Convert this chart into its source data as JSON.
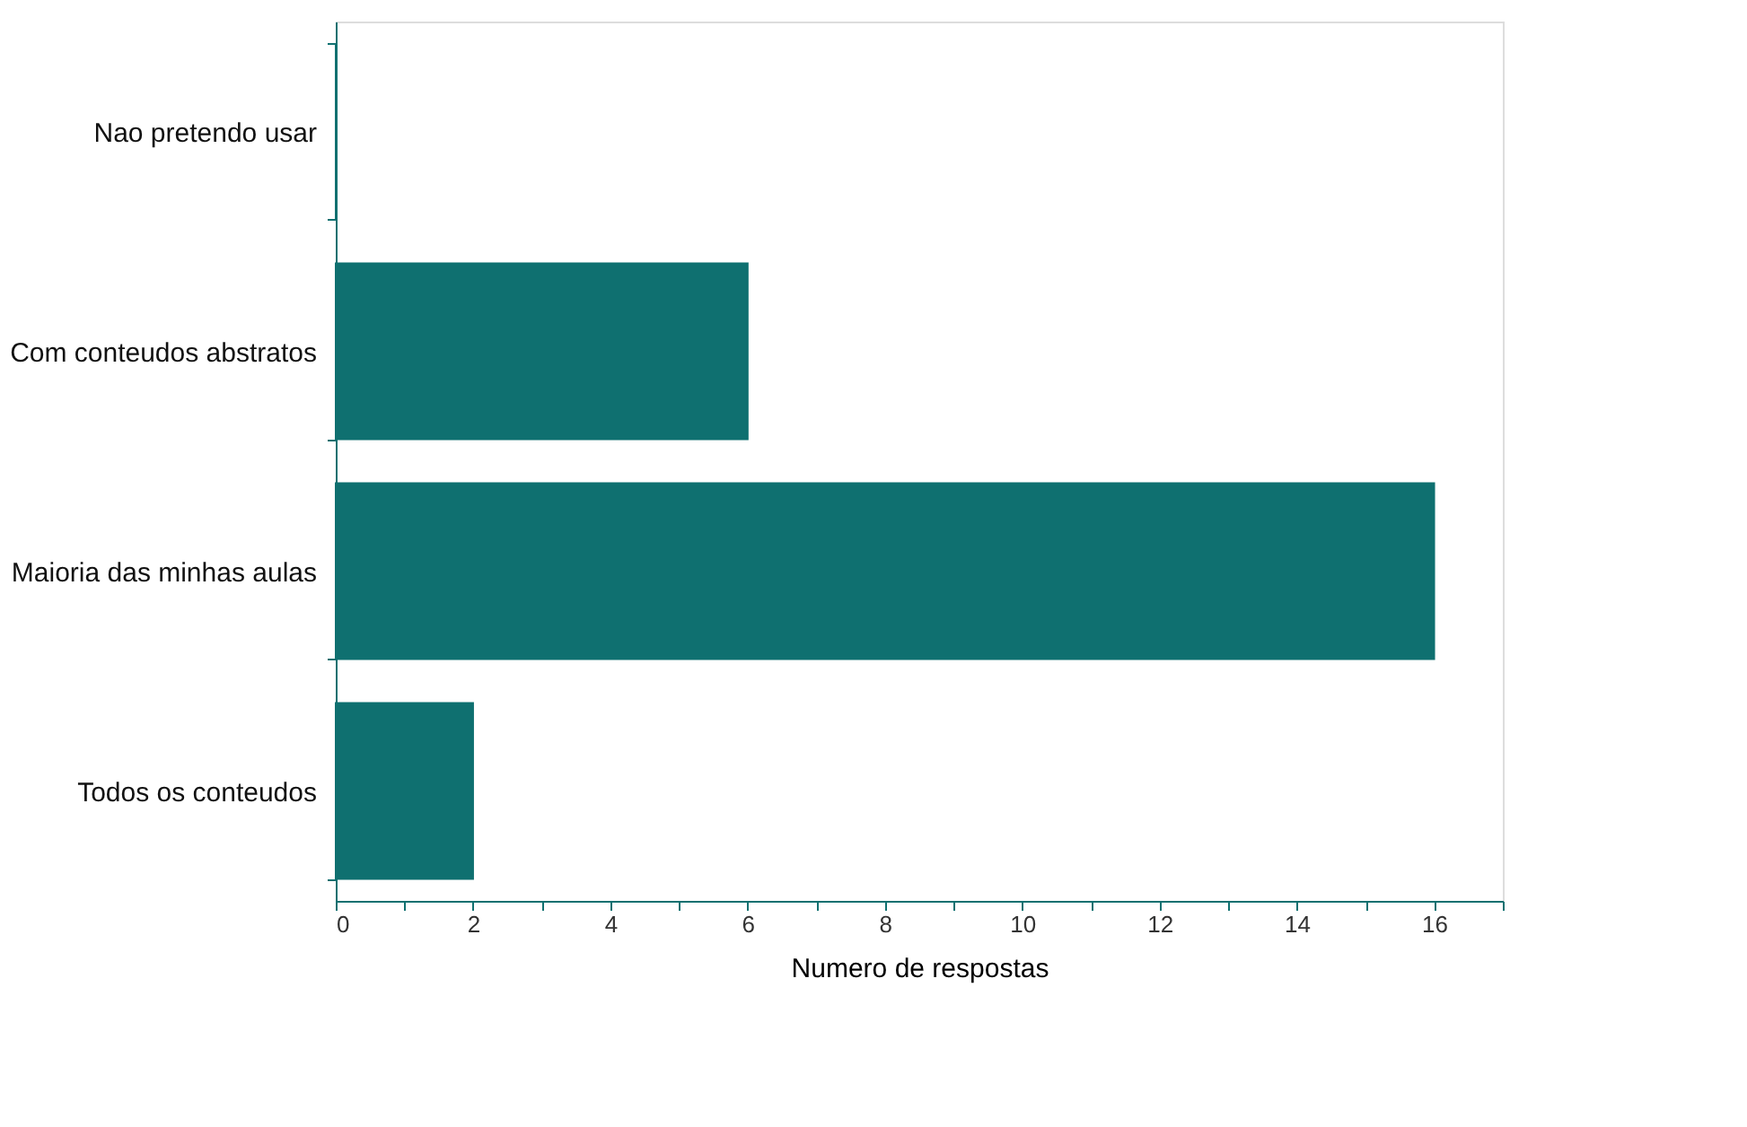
{
  "chart_data": {
    "type": "bar",
    "orientation": "horizontal",
    "xlabel": "Numero de respostas",
    "categories": [
      "Nao pretendo usar",
      "Com conteudos abstratos",
      "Maioria das minhas aulas",
      "Todos os conteudos"
    ],
    "values": [
      0,
      6,
      16,
      2
    ],
    "color": "#0f7070",
    "xlim": [
      0,
      17
    ],
    "xticks": [
      0,
      {
        "value": 1,
        "label": null
      },
      2,
      {
        "value": 3,
        "label": null
      },
      4,
      {
        "value": 5,
        "label": null
      },
      6,
      {
        "value": 7,
        "label": null
      },
      8,
      {
        "value": 9,
        "label": null
      },
      10,
      {
        "value": 11,
        "label": null
      },
      12,
      {
        "value": 13,
        "label": null
      },
      14,
      {
        "value": 15,
        "label": null
      },
      16,
      {
        "value": 17,
        "label": null
      }
    ],
    "grid": false
  }
}
